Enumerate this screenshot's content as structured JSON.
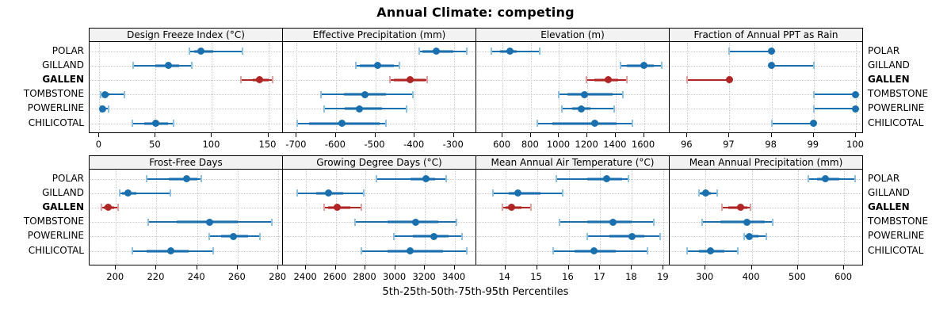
{
  "chart_data": {
    "type": "dotplot",
    "title": "Annual Climate: competing",
    "caption": "5th-25th-50th-75th-95th Percentiles",
    "percentiles": [
      "5th",
      "25th",
      "50th",
      "75th",
      "95th"
    ],
    "sites": [
      "POLAR",
      "GILLAND",
      "GALLEN",
      "TOMBSTONE",
      "POWERLINE",
      "CHILICOTAL"
    ],
    "highlight_site": "GALLEN",
    "grid": "dotted",
    "legend_position": "none",
    "colors": {
      "series_blue": "#1A6FAE",
      "series_blue_light": "#90C0DF",
      "highlight_red": "#B02525",
      "highlight_red_light": "#DFA0A0",
      "strip_bg": "#F2F2F2",
      "grid_line": "#C9C9C9",
      "panel_border": "#000000"
    },
    "panels": [
      {
        "label": "Design Freeze Index (°C)",
        "xlim": [
          -8,
          163
        ],
        "ticks": [
          0,
          50,
          100,
          150
        ],
        "values": [
          [
            80,
            84,
            90,
            101,
            127
          ],
          [
            30,
            50,
            61,
            71,
            82
          ],
          [
            126,
            136,
            142,
            150,
            154
          ],
          [
            1,
            3,
            5,
            9,
            22
          ],
          [
            1,
            2,
            3,
            5,
            8
          ],
          [
            29,
            40,
            50,
            61,
            66
          ]
        ]
      },
      {
        "label": "Effective Precipitation (mm)",
        "xlim": [
          -733,
          -243
        ],
        "ticks": [
          -700,
          -600,
          -500,
          -400,
          -300
        ],
        "values": [
          [
            -389,
            -380,
            -345,
            -301,
            -267
          ],
          [
            -550,
            -540,
            -495,
            -453,
            -438
          ],
          [
            -463,
            -452,
            -412,
            -373,
            -368
          ],
          [
            -639,
            -580,
            -527,
            -473,
            -405
          ],
          [
            -630,
            -577,
            -541,
            -483,
            -420
          ],
          [
            -699,
            -668,
            -584,
            -488,
            -472
          ]
        ]
      },
      {
        "label": "Elevation (m)",
        "xlim": [
          420,
          1782
        ],
        "ticks": [
          600,
          800,
          1000,
          1200,
          1400,
          1600
        ],
        "values": [
          [
            522,
            583,
            650,
            702,
            860
          ],
          [
            1435,
            1480,
            1600,
            1672,
            1726
          ],
          [
            1193,
            1252,
            1350,
            1420,
            1481
          ],
          [
            1000,
            1058,
            1178,
            1378,
            1454
          ],
          [
            1017,
            1095,
            1155,
            1220,
            1389
          ],
          [
            846,
            952,
            1254,
            1404,
            1518
          ]
        ]
      },
      {
        "label": "Fraction of Annual PPT as Rain",
        "xlim": [
          95.6,
          100.17
        ],
        "ticks": [
          96,
          97,
          98,
          99,
          100
        ],
        "values": [
          [
            97,
            98,
            98,
            98,
            98
          ],
          [
            98,
            98,
            98,
            98,
            99
          ],
          [
            96,
            97,
            97,
            97,
            97
          ],
          [
            99,
            100,
            100,
            100,
            100
          ],
          [
            99,
            100,
            100,
            100,
            100
          ],
          [
            98,
            99,
            99,
            99,
            99
          ]
        ]
      },
      {
        "label": "Frost-Free Days",
        "xlim": [
          187.4,
          282.3
        ],
        "ticks": [
          200,
          220,
          240,
          260,
          280
        ],
        "values": [
          [
            215,
            226,
            235,
            240,
            242
          ],
          [
            202,
            203,
            206,
            210,
            227
          ],
          [
            193,
            194,
            196,
            199,
            201
          ],
          [
            216,
            230,
            246,
            260,
            277
          ],
          [
            246,
            252,
            258,
            265,
            271
          ],
          [
            208,
            215,
            227,
            236,
            248
          ]
        ]
      },
      {
        "label": "Growing Degree Days (°C)",
        "xlim": [
          2250,
          3546
        ],
        "ticks": [
          2400,
          2600,
          2800,
          3000,
          3200,
          3400
        ],
        "values": [
          [
            2875,
            3105,
            3205,
            3270,
            3345
          ],
          [
            2340,
            2470,
            2550,
            2650,
            2790
          ],
          [
            2520,
            2550,
            2610,
            2700,
            2770
          ],
          [
            2730,
            2950,
            3140,
            3290,
            3410
          ],
          [
            2990,
            3120,
            3260,
            3360,
            3450
          ],
          [
            2770,
            2950,
            3100,
            3320,
            3480
          ]
        ]
      },
      {
        "label": "Mean Annual Air Temperature (°C)",
        "xlim": [
          13.11,
          19.19
        ],
        "ticks": [
          14,
          15,
          16,
          17,
          18,
          19
        ],
        "values": [
          [
            15.6,
            16.6,
            17.2,
            17.7,
            17.9
          ],
          [
            13.6,
            14.1,
            14.4,
            15.1,
            15.8
          ],
          [
            13.9,
            14.0,
            14.2,
            14.5,
            14.8
          ],
          [
            15.7,
            16.6,
            17.4,
            18.0,
            18.7
          ],
          [
            16.6,
            17.3,
            18.0,
            18.4,
            18.9
          ],
          [
            15.5,
            16.2,
            16.8,
            17.5,
            18.5
          ]
        ]
      },
      {
        "label": "Mean Annual Precipitation (mm)",
        "xlim": [
          224,
          641
        ],
        "ticks": [
          300,
          400,
          500,
          600
        ],
        "values": [
          [
            523,
            541,
            560,
            589,
            624
          ],
          [
            286,
            290,
            300,
            312,
            326
          ],
          [
            335,
            350,
            376,
            390,
            398
          ],
          [
            292,
            332,
            390,
            428,
            445
          ],
          [
            384,
            388,
            395,
            415,
            431
          ],
          [
            260,
            285,
            310,
            340,
            370
          ]
        ]
      }
    ]
  }
}
